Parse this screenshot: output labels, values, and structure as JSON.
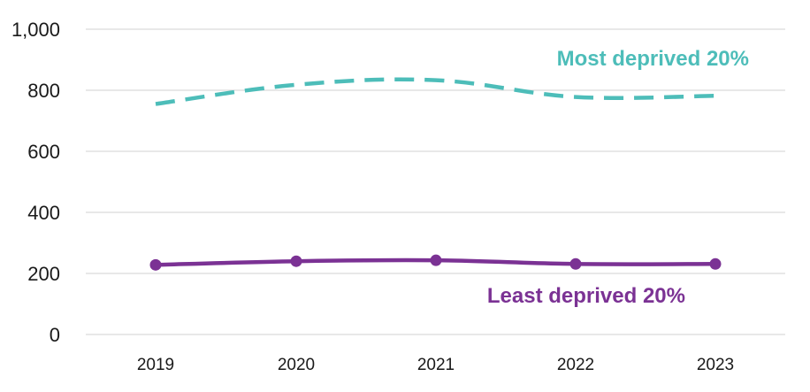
{
  "chart_data": {
    "type": "line",
    "categories": [
      "2019",
      "2020",
      "2021",
      "2022",
      "2023"
    ],
    "ylim": [
      0,
      1000
    ],
    "yticks": [
      0,
      200,
      400,
      600,
      800,
      1000
    ],
    "ytick_labels": [
      "0",
      "200",
      "400",
      "600",
      "800",
      "1,000"
    ],
    "grid": true,
    "series": [
      {
        "name": "Most deprived 20%",
        "values": [
          755,
          818,
          833,
          778,
          782
        ],
        "color": "#4DBDB9",
        "style": "dashed"
      },
      {
        "name": "Least deprived 20%",
        "values": [
          228,
          240,
          243,
          231,
          231
        ],
        "color": "#7B3294",
        "style": "solid-markers"
      }
    ]
  }
}
